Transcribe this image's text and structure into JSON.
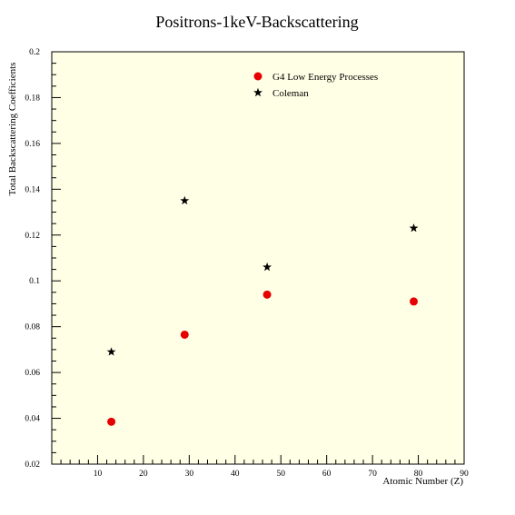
{
  "colors": {
    "plot_background": "#ffffe6",
    "g4_marker": "#e60000",
    "coleman_marker": "#000000",
    "axes": "#000000"
  },
  "chart_data": {
    "type": "scatter",
    "title": "Positrons-1keV-Backscattering",
    "xlabel": "Atomic Number (Z)",
    "ylabel": "Total Backscattering Coefficients",
    "xlim": [
      0,
      90
    ],
    "ylim": [
      0.02,
      0.2
    ],
    "x_ticks": [
      10,
      20,
      30,
      40,
      50,
      60,
      70,
      80,
      90
    ],
    "y_ticks": [
      0.02,
      0.04,
      0.06,
      0.08,
      0.1,
      0.12,
      0.14,
      0.16,
      0.18,
      0.2
    ],
    "x_tick_labels": [
      "10",
      "20",
      "30",
      "40",
      "50",
      "60",
      "70",
      "80",
      "90"
    ],
    "y_tick_labels": [
      "0.02",
      "0.04",
      "0.06",
      "0.08",
      "0.1",
      "0.12",
      "0.14",
      "0.16",
      "0.18",
      "0.2"
    ],
    "grid": false,
    "legend_position": "top-right",
    "series": [
      {
        "name": "G4 Low Energy Processes",
        "marker": "circle",
        "color": "#e60000",
        "x": [
          13,
          29,
          47,
          79
        ],
        "y": [
          0.0385,
          0.0765,
          0.094,
          0.091
        ]
      },
      {
        "name": "Coleman",
        "marker": "star",
        "color": "#000000",
        "x": [
          13,
          29,
          47,
          79
        ],
        "y": [
          0.069,
          0.135,
          0.106,
          0.123
        ]
      }
    ]
  }
}
